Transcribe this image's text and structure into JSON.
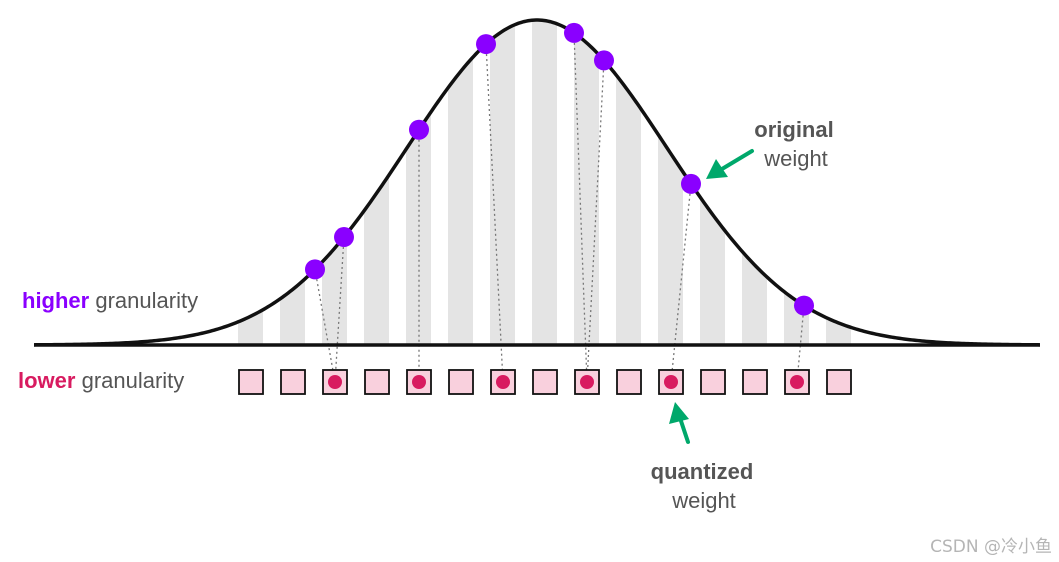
{
  "labels": {
    "higher_word": "higher",
    "higher_rest": " granularity",
    "lower_word": "lower",
    "lower_rest": " granularity",
    "original_title": "original",
    "original_sub": "weight",
    "quantized_title": "quantized",
    "quantized_sub": "weight",
    "watermark": "CSDN @冷小鱼"
  },
  "colors": {
    "purple": "#8a00ff",
    "crimson": "#d81b60",
    "square_fill": "#f9d0dd",
    "arrow_green": "#00a86b",
    "curve": "#111111",
    "stripe": "#e4e4e4"
  },
  "chart_data": {
    "type": "diagram",
    "quantization_bins": 15,
    "mapping": [
      {
        "original_x": 315,
        "bin": 2
      },
      {
        "original_x": 344,
        "bin": 2
      },
      {
        "original_x": 419,
        "bin": 4
      },
      {
        "original_x": 486,
        "bin": 6
      },
      {
        "original_x": 574,
        "bin": 8
      },
      {
        "original_x": 604,
        "bin": 8
      },
      {
        "original_x": 691,
        "bin": 10
      },
      {
        "original_x": 804,
        "bin": 13
      }
    ]
  }
}
